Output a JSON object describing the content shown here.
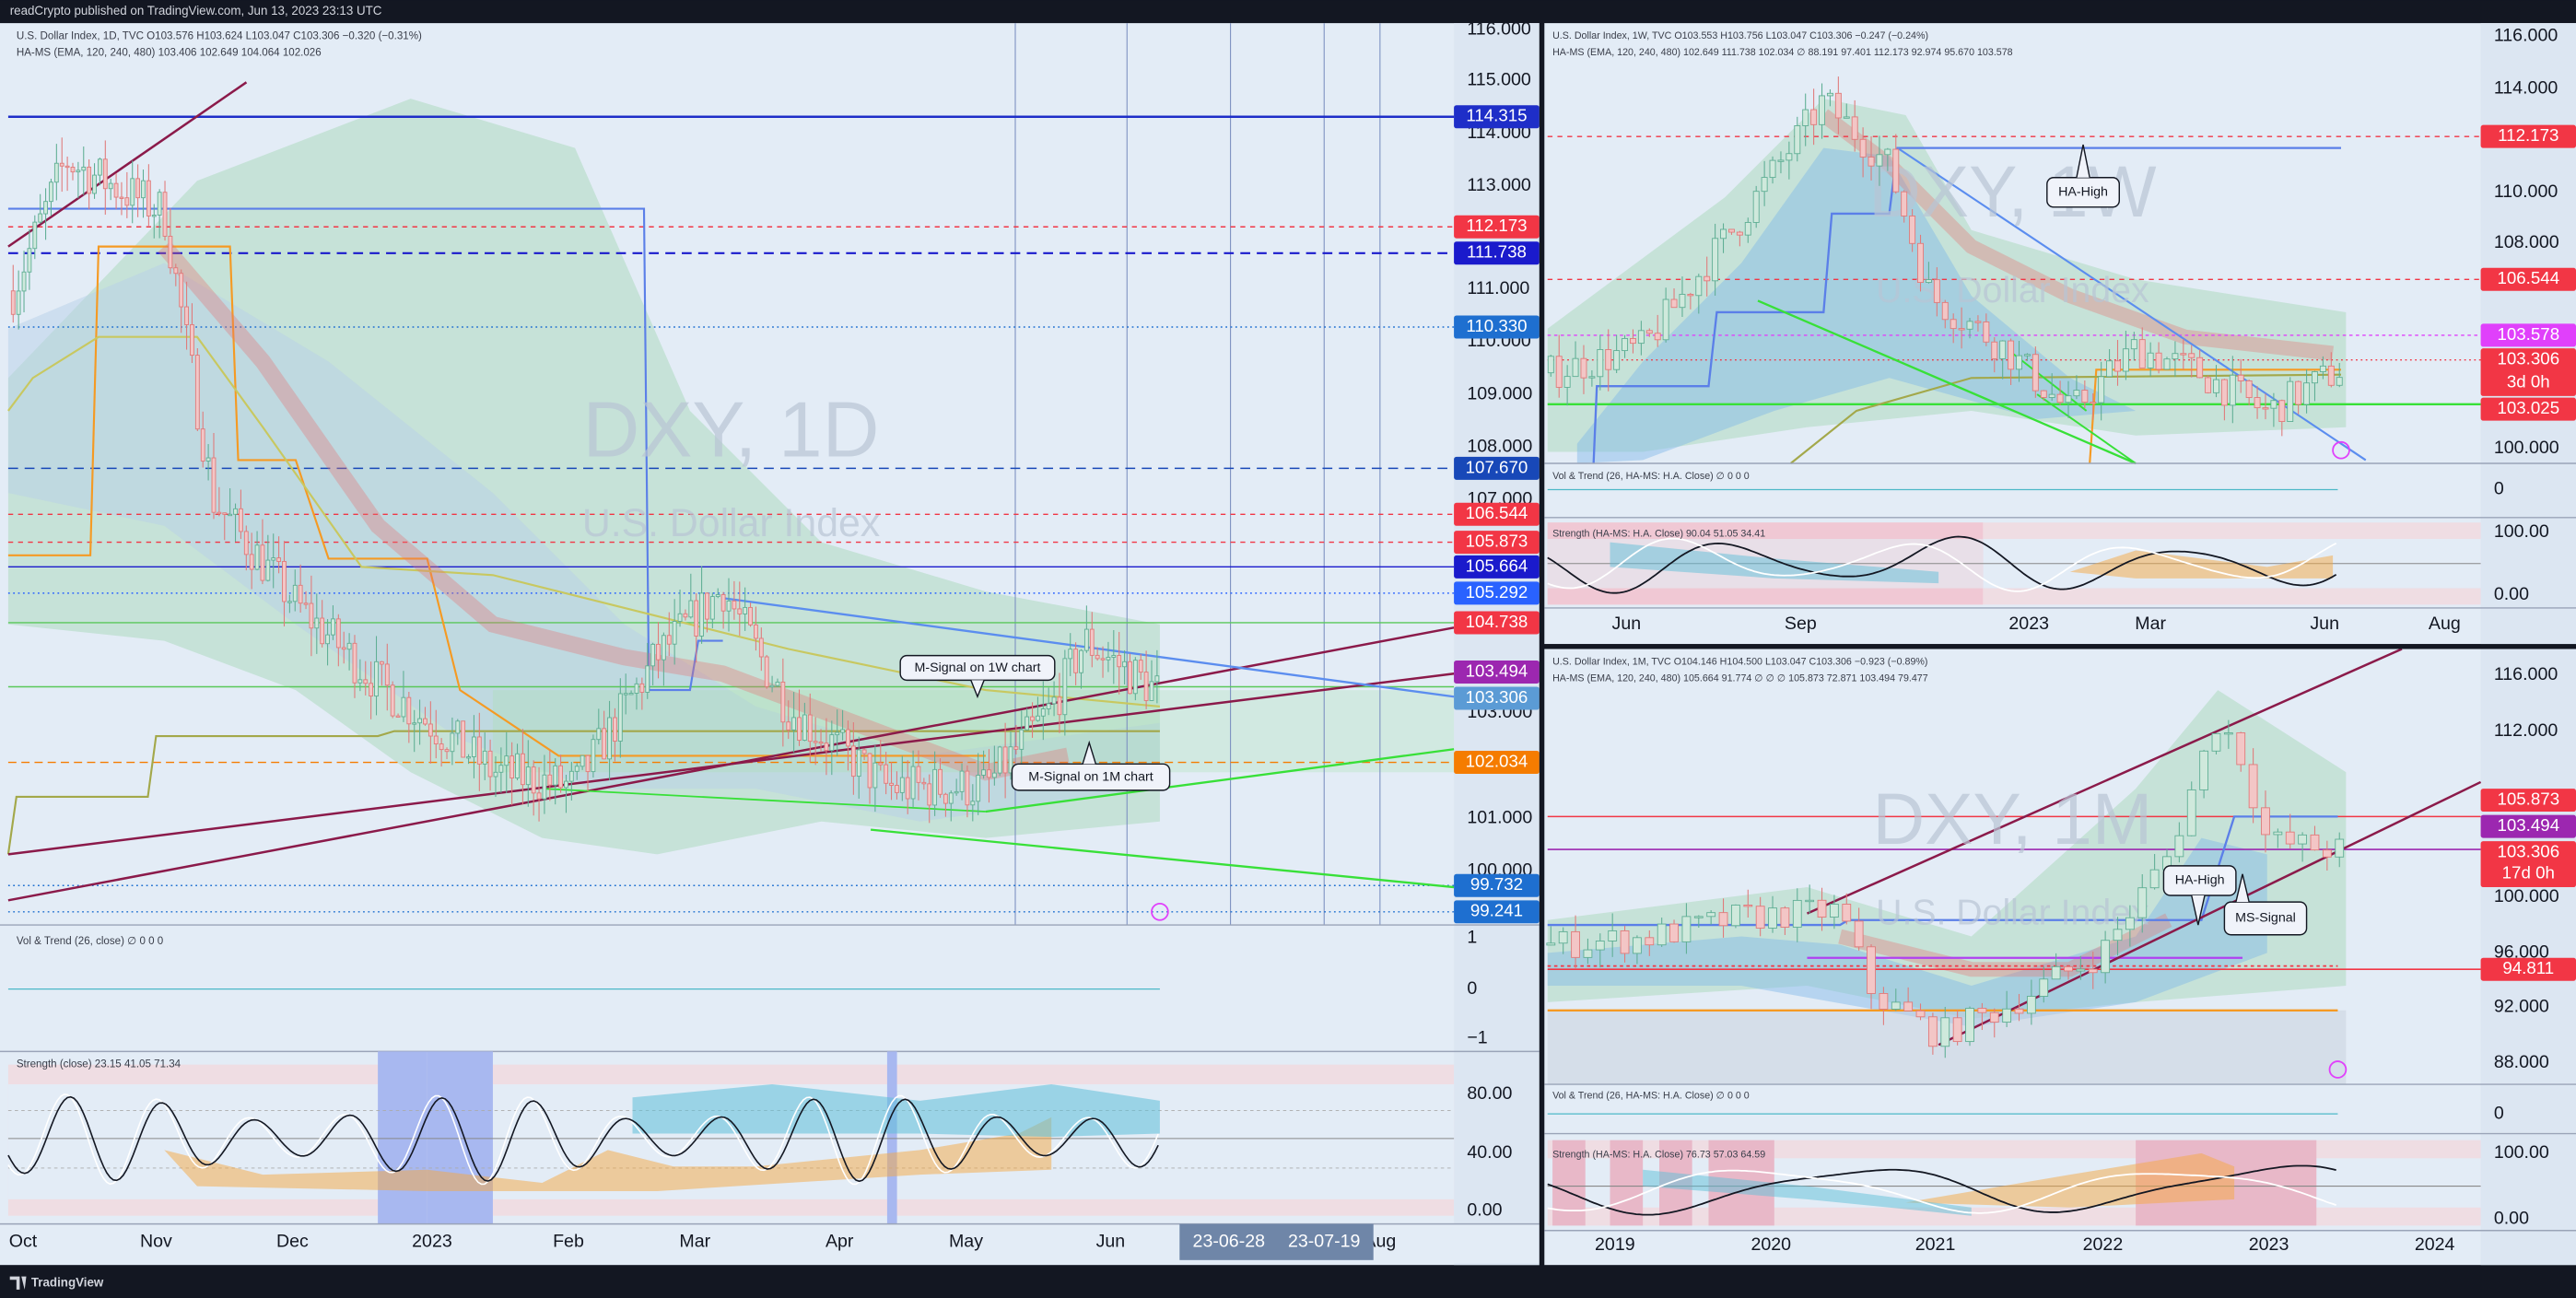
{
  "header": "readCrypto published on TradingView.com, Jun 13, 2023 23:13 UTC",
  "left": {
    "legend": [
      "U.S. Dollar Index, 1D, TVC  O103.576  H103.624  L103.047  C103.306  −0.320 (−0.31%)",
      "HA-MS (EMA, 120, 240, 480)  103.406  102.649  104.064  102.026"
    ],
    "watermark": "DXY, 1D",
    "symbol_name": "U.S. Dollar Index",
    "price_scale": [
      "116.000",
      "115.000",
      "114.000",
      "113.000",
      "111.000",
      "110.000",
      "109.000",
      "108.000",
      "107.000",
      "103.000",
      "101.000",
      "100.000"
    ],
    "price_labels": [
      "114.315",
      "112.173",
      "111.738",
      "110.330",
      "107.670",
      "106.544",
      "105.873",
      "105.664",
      "105.292",
      "104.738",
      "103.494",
      "103.306",
      "102.034",
      "99.732",
      "99.241"
    ],
    "callouts": [
      "M-Signal on 1W chart",
      "M-Signal on 1M chart"
    ],
    "vol_legend": "Vol & Trend (26, close)  ∅  0  0  0",
    "vol_scale": [
      "1",
      "0",
      "−1"
    ],
    "strength_legend": "Strength (close)  23.15  41.05  71.34",
    "strength_scale": [
      "80.00",
      "40.00",
      "0.00"
    ],
    "time_axis": [
      "Oct",
      "Nov",
      "Dec",
      "2023",
      "Feb",
      "Mar",
      "Apr",
      "May",
      "Jun",
      "Aug"
    ],
    "time_markers": [
      "23-06-28",
      "23-07-19"
    ]
  },
  "weekly": {
    "legend": [
      "U.S. Dollar Index, 1W, TVC  O103.553  H103.756  L103.047  C103.306  −0.247 (−0.24%)",
      "HA-MS (EMA, 120, 240, 480)  102.649  111.738  102.034  ∅  88.191  97.401  112.173  92.974  95.670  103.578"
    ],
    "watermark": "DXY, 1W",
    "symbol_name": "U.S. Dollar Index",
    "price_scale": [
      "116.000",
      "114.000",
      "110.000",
      "108.000",
      "100.000"
    ],
    "price_labels": [
      "112.173",
      "106.544",
      "103.578",
      "103.306",
      "103.025"
    ],
    "countdown": "3d 0h",
    "callouts": [
      "HA-High"
    ],
    "vol_legend": "Vol & Trend (26, HA-MS: H.A. Close)  ∅  0  0  0",
    "vol_scale": [
      "0"
    ],
    "strength_legend": "Strength (HA-MS: H.A. Close)  90.04  51.05  34.41",
    "strength_scale": [
      "100.00",
      "0.00"
    ],
    "time_axis": [
      "Jun",
      "Sep",
      "2023",
      "Mar",
      "Jun",
      "Aug"
    ]
  },
  "monthly": {
    "legend": [
      "U.S. Dollar Index, 1M, TVC  O104.146  H104.500  L103.047  C103.306  −0.923 (−0.89%)",
      "HA-MS (EMA, 120, 240, 480)  105.664  91.774  ∅  ∅  ∅  105.873  72.871  103.494  79.477"
    ],
    "watermark": "DXY, 1M",
    "symbol_name": "U.S. Dollar Index",
    "price_scale": [
      "116.000",
      "112.000",
      "100.000",
      "96.000",
      "92.000",
      "88.000"
    ],
    "price_labels": [
      "105.873",
      "103.494",
      "103.306",
      "94.811"
    ],
    "countdown": "17d 0h",
    "callouts": [
      "HA-High",
      "MS-Signal"
    ],
    "vol_legend": "Vol & Trend (26, HA-MS: H.A. Close)  ∅  0  0  0",
    "vol_scale": [
      "0"
    ],
    "strength_legend": "Strength (HA-MS: H.A. Close)  76.73  57.03  64.59",
    "strength_scale": [
      "100.00",
      "0.00"
    ],
    "time_axis": [
      "2019",
      "2020",
      "2021",
      "2022",
      "2023",
      "2024"
    ]
  },
  "footer": "TradingView"
}
